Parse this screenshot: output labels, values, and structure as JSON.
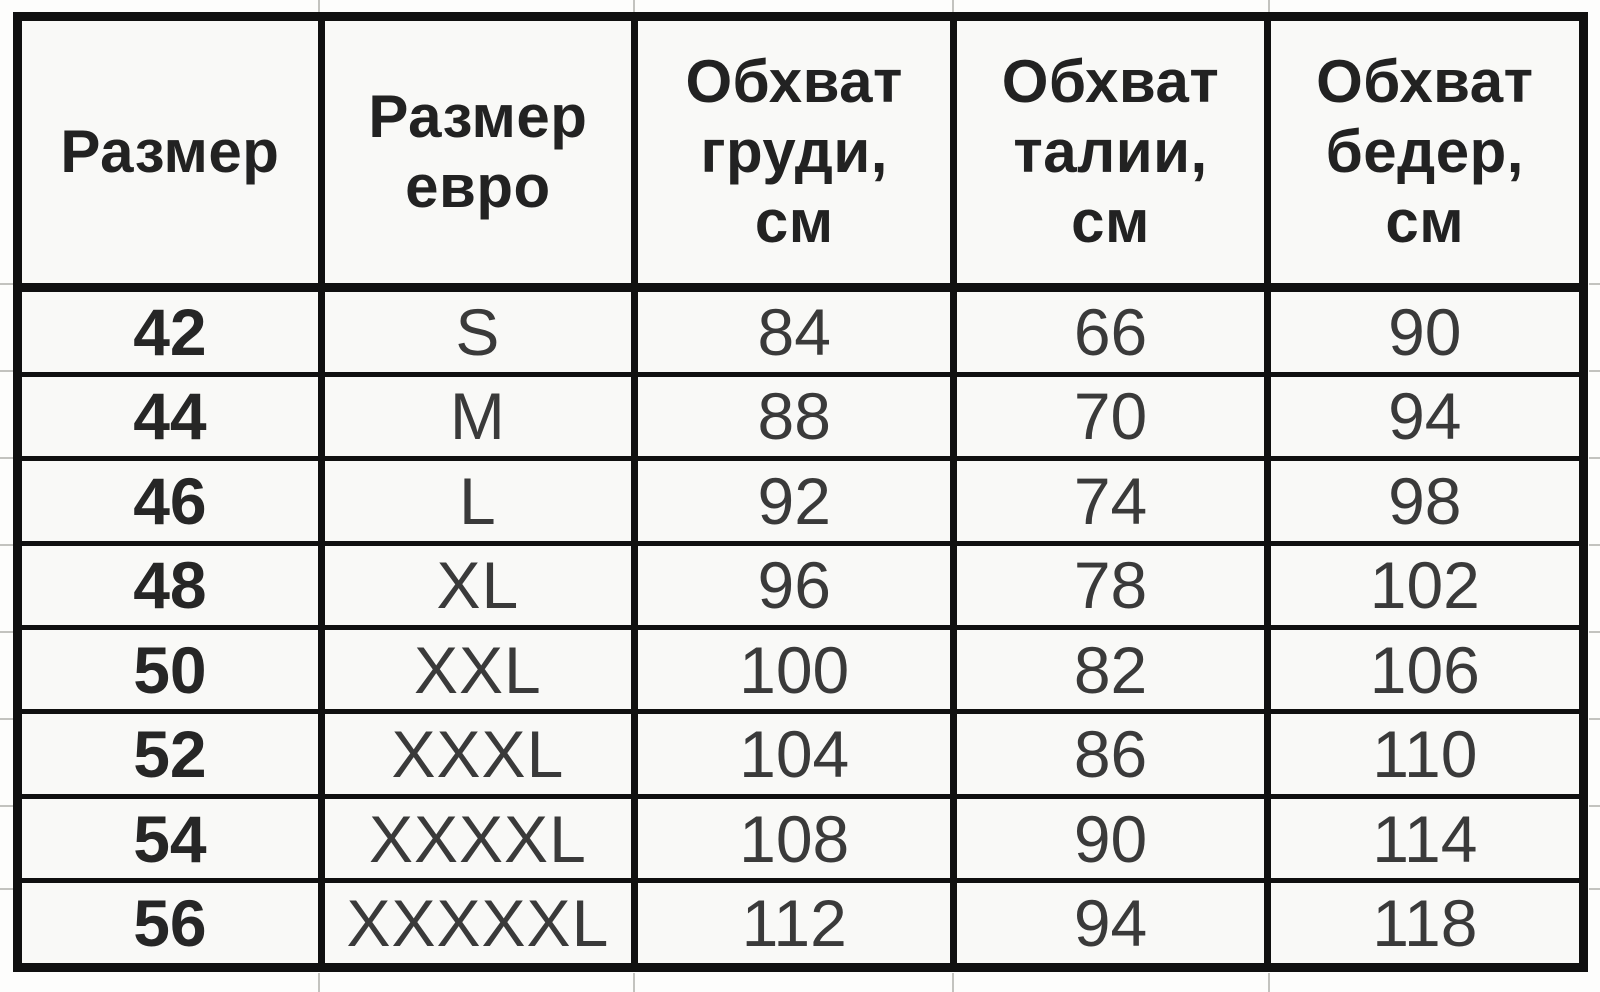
{
  "table": {
    "columns": [
      {
        "label": "Размер"
      },
      {
        "label": "Размер\nевро"
      },
      {
        "label": "Обхват\nгруди,\nсм"
      },
      {
        "label": "Обхват\nталии,\nсм"
      },
      {
        "label": "Обхват\nбедер,\nсм"
      }
    ],
    "rows": [
      [
        "42",
        "S",
        "84",
        "66",
        "90"
      ],
      [
        "44",
        "M",
        "88",
        "70",
        "94"
      ],
      [
        "46",
        "L",
        "92",
        "74",
        "98"
      ],
      [
        "48",
        "XL",
        "96",
        "78",
        "102"
      ],
      [
        "50",
        "XXL",
        "100",
        "82",
        "106"
      ],
      [
        "52",
        "XXXL",
        "104",
        "86",
        "110"
      ],
      [
        "54",
        "XXXXL",
        "108",
        "90",
        "114"
      ],
      [
        "56",
        "XXXXXL",
        "112",
        "94",
        "118"
      ]
    ]
  },
  "colors": {
    "table_border": "#101010",
    "cell_background": "#f9f9f7",
    "sheet_background": "#fdfdfc",
    "gridline": "#c3c3bf",
    "text": "#262626"
  }
}
